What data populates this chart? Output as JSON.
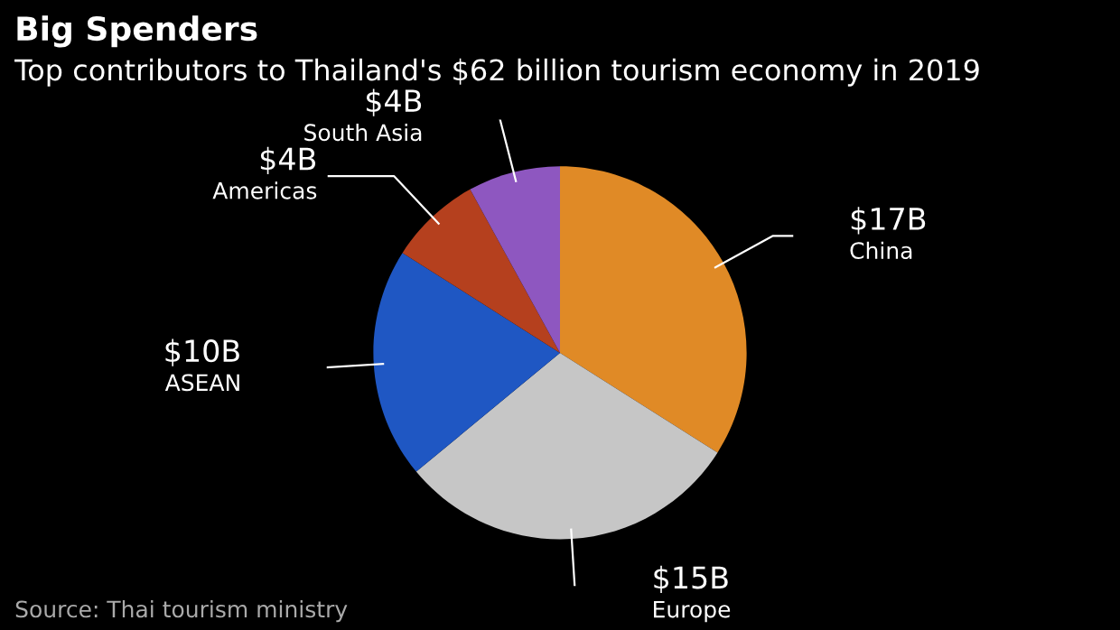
{
  "chart_data": {
    "type": "pie",
    "title": "Big Spenders",
    "subtitle": "Top contributors to Thailand's $62 billion tourism economy in 2019",
    "categories": [
      "China",
      "Europe",
      "ASEAN",
      "Americas",
      "South Asia"
    ],
    "values": [
      17,
      15,
      10,
      4,
      4
    ],
    "colors": [
      "#e08a26",
      "#c6c6c6",
      "#1f57c3",
      "#b5401e",
      "#8e57c0"
    ],
    "value_labels": [
      "$17B",
      "$15B",
      "$10B",
      "$4B",
      "$4B"
    ],
    "annotations": [
      "Source: Thai tourism ministry"
    ]
  }
}
